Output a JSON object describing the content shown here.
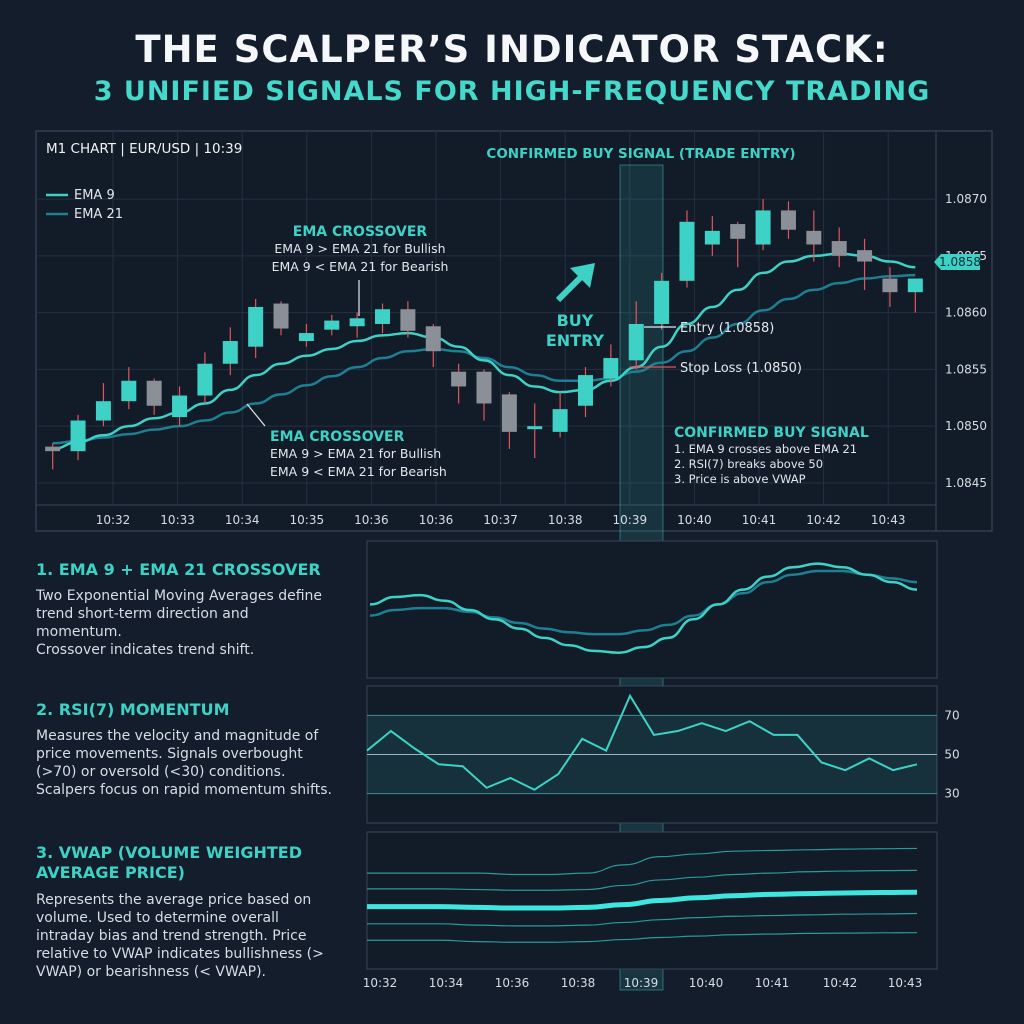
{
  "title": "THE SCALPER’S INDICATOR STACK:",
  "subtitle": "3 UNIFIED SIGNALS FOR HIGH-FREQUENCY TRADING",
  "colors": {
    "background": "#141d2b",
    "accent": "#3ed1c6",
    "bull_candle": "#3ed1c6",
    "bear_candle": "#8a8f98",
    "ema9": "#3ed1c6",
    "ema21": "#1e7f92",
    "wick_red": "#e0565b"
  },
  "chart_data": [
    {
      "type": "candlestick",
      "title": "M1 CHART | EUR/USD | 10:39",
      "x_ticks": [
        "10:32",
        "10:33",
        "10:34",
        "10:35",
        "10:36",
        "10:36",
        "10:37",
        "10:38",
        "10:39",
        "10:40",
        "10:41",
        "10:42",
        "10:43"
      ],
      "y_ticks": [
        1.087,
        1.0865,
        1.086,
        1.0855,
        1.085,
        1.0845
      ],
      "ylim": [
        1.08435,
        1.0873
      ],
      "legend": [
        {
          "name": "EMA 9",
          "color": "#3ed1c6"
        },
        {
          "name": "EMA 21",
          "color": "#1e7f92"
        }
      ],
      "candles": [
        {
          "o": 1.08482,
          "h": 1.08485,
          "l": 1.08462,
          "c": 1.08478,
          "dir": "bear"
        },
        {
          "o": 1.08478,
          "h": 1.0851,
          "l": 1.0847,
          "c": 1.08505,
          "dir": "bull"
        },
        {
          "o": 1.08505,
          "h": 1.08538,
          "l": 1.085,
          "c": 1.08522,
          "dir": "bull"
        },
        {
          "o": 1.08522,
          "h": 1.08552,
          "l": 1.08515,
          "c": 1.0854,
          "dir": "bull"
        },
        {
          "o": 1.0854,
          "h": 1.08542,
          "l": 1.0851,
          "c": 1.08518,
          "dir": "bear"
        },
        {
          "o": 1.08508,
          "h": 1.08535,
          "l": 1.085,
          "c": 1.08527,
          "dir": "bull"
        },
        {
          "o": 1.08527,
          "h": 1.08565,
          "l": 1.0852,
          "c": 1.08555,
          "dir": "bull"
        },
        {
          "o": 1.08555,
          "h": 1.08587,
          "l": 1.08545,
          "c": 1.08575,
          "dir": "bull"
        },
        {
          "o": 1.0857,
          "h": 1.08612,
          "l": 1.0856,
          "c": 1.08605,
          "dir": "bull"
        },
        {
          "o": 1.08608,
          "h": 1.0861,
          "l": 1.0858,
          "c": 1.08586,
          "dir": "bear"
        },
        {
          "o": 1.08575,
          "h": 1.0859,
          "l": 1.0857,
          "c": 1.08582,
          "dir": "bull"
        },
        {
          "o": 1.08585,
          "h": 1.08598,
          "l": 1.0858,
          "c": 1.08593,
          "dir": "bull"
        },
        {
          "o": 1.08588,
          "h": 1.086,
          "l": 1.08578,
          "c": 1.08595,
          "dir": "bull"
        },
        {
          "o": 1.0859,
          "h": 1.08608,
          "l": 1.08582,
          "c": 1.08603,
          "dir": "bull"
        },
        {
          "o": 1.08603,
          "h": 1.0861,
          "l": 1.08578,
          "c": 1.08584,
          "dir": "bear"
        },
        {
          "o": 1.08588,
          "h": 1.0859,
          "l": 1.08552,
          "c": 1.08566,
          "dir": "bear"
        },
        {
          "o": 1.08548,
          "h": 1.08555,
          "l": 1.0852,
          "c": 1.08535,
          "dir": "bear"
        },
        {
          "o": 1.08548,
          "h": 1.0855,
          "l": 1.08505,
          "c": 1.0852,
          "dir": "bear"
        },
        {
          "o": 1.08528,
          "h": 1.0853,
          "l": 1.0848,
          "c": 1.08495,
          "dir": "bear"
        },
        {
          "o": 1.08498,
          "h": 1.0852,
          "l": 1.08472,
          "c": 1.085,
          "dir": "bull"
        },
        {
          "o": 1.08495,
          "h": 1.0853,
          "l": 1.0849,
          "c": 1.08515,
          "dir": "bull"
        },
        {
          "o": 1.08518,
          "h": 1.08552,
          "l": 1.08508,
          "c": 1.08545,
          "dir": "bull"
        },
        {
          "o": 1.08542,
          "h": 1.08572,
          "l": 1.08535,
          "c": 1.0856,
          "dir": "bull"
        },
        {
          "o": 1.08558,
          "h": 1.0861,
          "l": 1.0855,
          "c": 1.0859,
          "dir": "bull"
        },
        {
          "o": 1.0859,
          "h": 1.08635,
          "l": 1.08585,
          "c": 1.08628,
          "dir": "bull"
        },
        {
          "o": 1.08628,
          "h": 1.0869,
          "l": 1.08622,
          "c": 1.0868,
          "dir": "bull"
        },
        {
          "o": 1.08672,
          "h": 1.08685,
          "l": 1.0865,
          "c": 1.0866,
          "dir": "bull"
        },
        {
          "o": 1.08665,
          "h": 1.0868,
          "l": 1.0864,
          "c": 1.08678,
          "dir": "bear"
        },
        {
          "o": 1.0866,
          "h": 1.087,
          "l": 1.08655,
          "c": 1.0869,
          "dir": "bull"
        },
        {
          "o": 1.0869,
          "h": 1.08698,
          "l": 1.08665,
          "c": 1.08673,
          "dir": "bear"
        },
        {
          "o": 1.08672,
          "h": 1.0869,
          "l": 1.08645,
          "c": 1.0866,
          "dir": "bear"
        },
        {
          "o": 1.08663,
          "h": 1.08675,
          "l": 1.0864,
          "c": 1.0865,
          "dir": "bear"
        },
        {
          "o": 1.08655,
          "h": 1.08665,
          "l": 1.0862,
          "c": 1.08645,
          "dir": "bear"
        },
        {
          "o": 1.0863,
          "h": 1.0864,
          "l": 1.08605,
          "c": 1.08618,
          "dir": "bear"
        },
        {
          "o": 1.08618,
          "h": 1.0863,
          "l": 1.086,
          "c": 1.0863,
          "dir": "bull"
        }
      ],
      "ema9": [
        1.0848,
        1.08486,
        1.08492,
        1.085,
        1.08507,
        1.08512,
        1.0852,
        1.08532,
        1.08545,
        1.08555,
        1.08562,
        1.08568,
        1.08575,
        1.0858,
        1.08582,
        1.08578,
        1.0857,
        1.08558,
        1.08545,
        1.08535,
        1.0853,
        1.08532,
        1.0854,
        1.08552,
        1.0857,
        1.0859,
        1.08605,
        1.0862,
        1.08635,
        1.08645,
        1.0865,
        1.08652,
        1.0865,
        1.08645,
        1.0864
      ],
      "ema21": [
        1.08485,
        1.08487,
        1.0849,
        1.08493,
        1.08497,
        1.085,
        1.08505,
        1.08512,
        1.0852,
        1.08528,
        1.08536,
        1.08544,
        1.08552,
        1.0856,
        1.08566,
        1.08568,
        1.08566,
        1.0856,
        1.08552,
        1.08545,
        1.0854,
        1.0854,
        1.08542,
        1.08548,
        1.08556,
        1.08566,
        1.08578,
        1.0859,
        1.08602,
        1.08612,
        1.0862,
        1.08626,
        1.0863,
        1.08632,
        1.08633
      ],
      "price_tag": "1.0858",
      "entry_label": "Entry (1.0858)",
      "stop_label": "Stop Loss (1.0850)",
      "signal_column_label": "CONFIRMED BUY SIGNAL (TRADE ENTRY)",
      "buy_entry_label": [
        "BUY",
        "ENTRY"
      ],
      "annotation_top": {
        "title": "EMA CROSSOVER",
        "lines": [
          "EMA 9 > EMA 21 for Bullish",
          "EMA 9 < EMA 21 for Bearish"
        ]
      },
      "annotation_bottom": {
        "title": "EMA CROSSOVER",
        "lines": [
          "EMA 9 > EMA 21 for Bullish",
          "EMA 9 < EMA 21 for Bearish"
        ]
      },
      "confirmed_box": {
        "title": "CONFIRMED BUY SIGNAL",
        "lines": [
          "1. EMA 9 crosses above EMA 21",
          "2. RSI(7) breaks above 50",
          "3. Price is above VWAP"
        ]
      }
    },
    {
      "type": "line",
      "title": "EMA 9 + EMA 21 panel",
      "series": [
        {
          "name": "EMA 9",
          "values": [
            58,
            62,
            63,
            60,
            55,
            50,
            45,
            40,
            36,
            33,
            32,
            35,
            40,
            50,
            58,
            66,
            73,
            78,
            80,
            78,
            74,
            70,
            66
          ]
        },
        {
          "name": "EMA 21",
          "values": [
            52,
            55,
            56,
            56,
            54,
            51,
            48,
            45,
            43,
            42,
            42,
            44,
            47,
            52,
            58,
            64,
            70,
            74,
            76,
            76,
            74,
            72,
            70
          ]
        }
      ]
    },
    {
      "type": "line",
      "title": "RSI(7) panel",
      "y_ticks": [
        70,
        50,
        30
      ],
      "ylim": [
        15,
        85
      ],
      "values": [
        52,
        62,
        53,
        45,
        44,
        33,
        38,
        32,
        40,
        58,
        52,
        80,
        60,
        62,
        66,
        62,
        67,
        60,
        60,
        46,
        42,
        48,
        42,
        45
      ]
    },
    {
      "type": "line",
      "title": "VWAP panel",
      "x_ticks": [
        "10:32",
        "10:34",
        "10:36",
        "10:38",
        "10:39",
        "10:40",
        "10:41",
        "10:42",
        "10:43"
      ],
      "vwap": [
        0.455,
        0.455,
        0.455,
        0.45,
        0.445,
        0.445,
        0.45,
        0.47,
        0.5,
        0.52,
        0.535,
        0.545,
        0.55,
        0.555,
        0.558,
        0.56
      ],
      "bands": [
        [
          0.7,
          0.7,
          0.7,
          0.7,
          0.69,
          0.69,
          0.7,
          0.76,
          0.82,
          0.84,
          0.86,
          0.865,
          0.87,
          0.875,
          0.878,
          0.88
        ],
        [
          0.585,
          0.585,
          0.585,
          0.58,
          0.575,
          0.575,
          0.58,
          0.61,
          0.65,
          0.67,
          0.69,
          0.7,
          0.71,
          0.715,
          0.718,
          0.72
        ],
        [
          0.33,
          0.33,
          0.33,
          0.32,
          0.315,
          0.315,
          0.32,
          0.34,
          0.36,
          0.375,
          0.385,
          0.39,
          0.395,
          0.4,
          0.402,
          0.405
        ],
        [
          0.21,
          0.21,
          0.21,
          0.2,
          0.195,
          0.195,
          0.2,
          0.215,
          0.23,
          0.24,
          0.25,
          0.255,
          0.26,
          0.262,
          0.264,
          0.265
        ]
      ]
    }
  ],
  "sections": [
    {
      "heading": "1. EMA 9 + EMA 21 CROSSOVER",
      "body": "Two Exponential Moving Averages define trend short-term direction and momentum.\nCrossover indicates trend shift."
    },
    {
      "heading": "2. RSI(7) MOMENTUM",
      "body": "Measures the velocity and magnitude of price movements. Signals overbought (>70) or oversold (<30) conditions. Scalpers focus on rapid momentum shifts."
    },
    {
      "heading": "3. VWAP (VOLUME WEIGHTED AVERAGE PRICE)",
      "body": "Represents the average price based on volume. Used to determine overall intraday bias and trend strength. Price relative to VWAP indicates bullishness (> VWAP) or bearishness (< VWAP)."
    }
  ]
}
